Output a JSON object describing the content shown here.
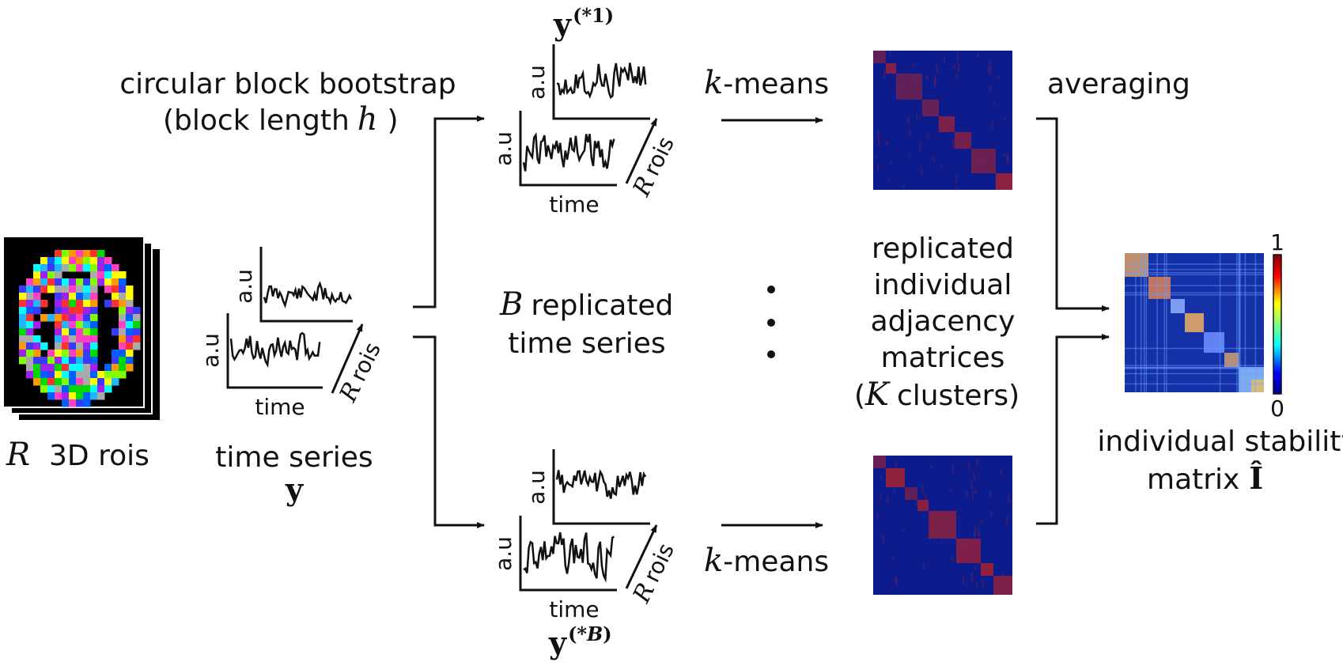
{
  "labels": {
    "rois_var": "R",
    "rois_text": "3D rois",
    "ts_text": "time series",
    "ts_var": "y",
    "bootstrap_line1": "circular block bootstrap",
    "bootstrap_line2_a": "(block length",
    "bootstrap_var": "h",
    "bootstrap_line2_b": ")",
    "replicated_var": "B",
    "replicated_line1": "replicated",
    "replicated_line2": "time series",
    "kmeans_var": "k",
    "kmeans_text": "-means",
    "averaging": "averaging",
    "adj_line1": "replicated",
    "adj_line2": "individual",
    "adj_line3": "adjacency",
    "adj_line4": "matrices",
    "adj_line5_a": "(",
    "adj_line5_var": "K",
    "adj_line5_b": "clusters)",
    "stab_line1": "individual stability",
    "stab_line2": "matrix",
    "stab_var": "Î",
    "y_star1_base": "y",
    "y_star1_sup": "(*1)",
    "y_starB_base": "y",
    "y_starB_sup_a": "(*",
    "y_starB_sup_var": "B",
    "y_starB_sup_b": ")",
    "axis_time": "time",
    "axis_au": "a.u",
    "rois_axis_var": "R",
    "rois_axis_text": "rois",
    "colorbar_max": "1",
    "colorbar_min": "0"
  },
  "colors": {
    "matrix_background": "#0c1c8c",
    "matrix_cluster": "#9a2236",
    "stability_background": "#1531a8",
    "brain_background": "#000000"
  }
}
